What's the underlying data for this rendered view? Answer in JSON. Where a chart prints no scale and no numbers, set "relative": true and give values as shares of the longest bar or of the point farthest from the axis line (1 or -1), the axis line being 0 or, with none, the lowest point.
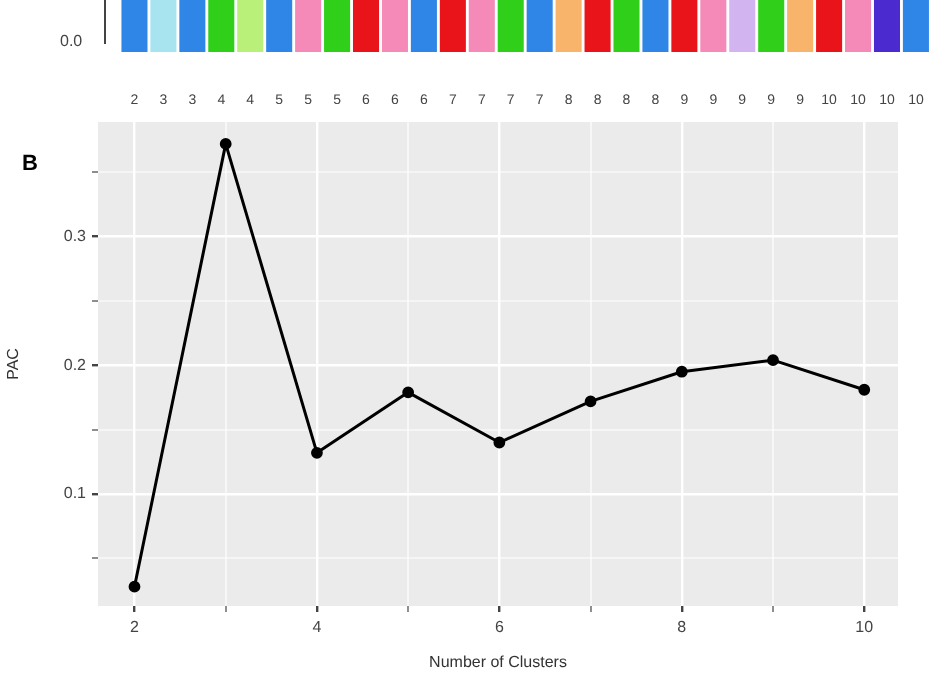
{
  "chart_data": [
    {
      "type": "bar",
      "relative": true,
      "categories": [
        "2",
        "3",
        "3",
        "4",
        "4",
        "5",
        "5",
        "5",
        "6",
        "6",
        "6",
        "7",
        "7",
        "7",
        "7",
        "8",
        "8",
        "8",
        "8",
        "9",
        "9",
        "9",
        "9",
        "9",
        "10",
        "10",
        "10",
        "10"
      ],
      "values": [
        1,
        1,
        1,
        1,
        1,
        1,
        1,
        1,
        1,
        1,
        1,
        1,
        1,
        1,
        1,
        1,
        1,
        1,
        1,
        1,
        1,
        1,
        1,
        1,
        1,
        1,
        1,
        1
      ],
      "colors": [
        "#2f86e6",
        "#a8e4f0",
        "#2f86e6",
        "#2fcf1a",
        "#b8f07a",
        "#2f86e6",
        "#f58ab8",
        "#2fcf1a",
        "#e8141a",
        "#f58ab8",
        "#2f86e6",
        "#e8141a",
        "#f58ab8",
        "#2fcf1a",
        "#2f86e6",
        "#f8b46a",
        "#e8141a",
        "#2fcf1a",
        "#2f86e6",
        "#e8141a",
        "#f58ab8",
        "#d2b4f0",
        "#2fcf1a",
        "#f8b46a",
        "#e8141a",
        "#f58ab8",
        "#4b2ad0",
        "#2f86e6"
      ],
      "annotations": [
        "0.0"
      ]
    },
    {
      "type": "line",
      "title": "B",
      "xlabel": "Number of Clusters",
      "ylabel": "PAC",
      "x": [
        2,
        3,
        4,
        5,
        6,
        7,
        8,
        9,
        10
      ],
      "series": [
        {
          "color": "#000000",
          "values": [
            0.028,
            0.372,
            0.132,
            0.179,
            0.14,
            0.172,
            0.195,
            0.204,
            0.181
          ]
        }
      ],
      "xlim": [
        1.6,
        10.37
      ],
      "ylim": [
        0.013,
        0.389
      ],
      "xticks": [
        2,
        {
          "value": 3,
          "label": null
        },
        4,
        {
          "value": 5,
          "label": null
        },
        6,
        {
          "value": 7,
          "label": null
        },
        8,
        {
          "value": 9,
          "label": null
        },
        10
      ],
      "yticks": [
        {
          "value": 0.05,
          "label": null
        },
        0.1,
        {
          "value": 0.15,
          "label": null
        },
        0.2,
        {
          "value": 0.25,
          "label": null
        },
        0.3,
        {
          "value": 0.35,
          "label": null
        }
      ],
      "grid": true,
      "legend": false,
      "marker": "circle",
      "line_style": "solid"
    }
  ]
}
